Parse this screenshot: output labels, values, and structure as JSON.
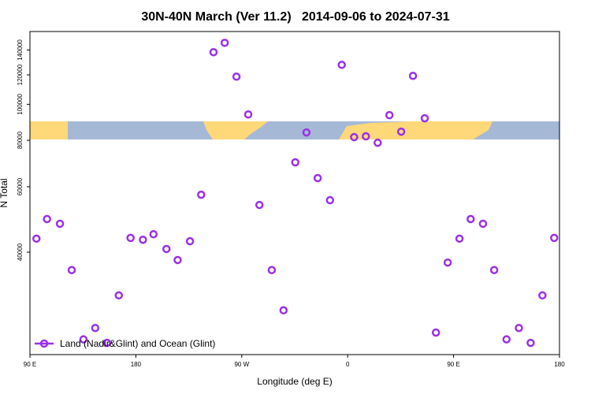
{
  "chart_data": {
    "type": "scatter",
    "title": "30N-40N March (Ver 11.2)   2014-09-06 to 2024-07-31",
    "x_label": "Longitude (deg E)",
    "y_label": "N Total",
    "xlim": [
      -270,
      180
    ],
    "xticks": [
      {
        "value": -270,
        "label": "90 E"
      },
      {
        "value": -180,
        "label": "180"
      },
      {
        "value": -90,
        "label": "90 W"
      },
      0,
      {
        "value": 90,
        "label": "90 E"
      },
      180
    ],
    "ylim": [
      21200,
      157000
    ],
    "log_y": true,
    "yticks": [
      40000,
      60000,
      80000,
      100000,
      120000,
      140000
    ],
    "legend": "bottom-left",
    "series": [
      {
        "name": "Land (Nadir&Glint) and Ocean (Glint)",
        "color": "#9b30e8",
        "x": [
          -264.5,
          -255.5,
          -244.5,
          -234.5,
          -224.5,
          -214.5,
          -204.5,
          -194.5,
          -184.5,
          -174,
          -165,
          -154,
          -144.5,
          -134,
          -124.5,
          -114,
          -104.5,
          -94.5,
          -84.5,
          -75,
          -64.5,
          -54.5,
          -44.5,
          -35,
          -25.5,
          -15,
          -5,
          5.5,
          15.5,
          25.5,
          35.5,
          45.5,
          55.5,
          65.5,
          75,
          85,
          95,
          104.5,
          115,
          124.5,
          135,
          145.5,
          155.5,
          165.5,
          175.5
        ],
        "values": [
          43500,
          49100,
          47700,
          35800,
          23300,
          25000,
          22800,
          30600,
          43700,
          43200,
          44700,
          40800,
          38100,
          42800,
          57100,
          138100,
          146400,
          118700,
          93900,
          53600,
          35800,
          27900,
          69800,
          84000,
          63300,
          55200,
          127700,
          81600,
          82000,
          78800,
          93500,
          84400,
          119300,
          91700,
          24300,
          37500,
          43500,
          49100,
          47700,
          35800,
          23300,
          25000,
          22800,
          30600,
          43700
        ]
      }
    ]
  }
}
